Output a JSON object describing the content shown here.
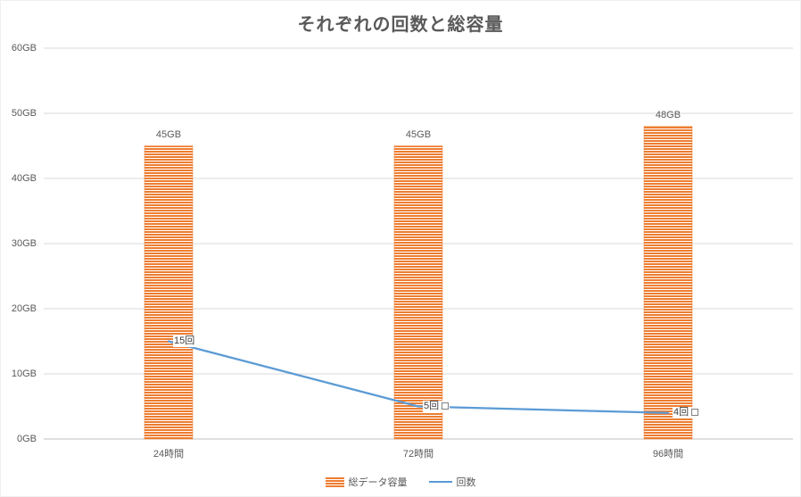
{
  "chart_data": {
    "type": "combo",
    "title": "それぞれの回数と総容量",
    "categories": [
      "24時間",
      "72時間",
      "96時間"
    ],
    "series": [
      {
        "name": "総データ容量",
        "chart_type": "bar",
        "values": [
          45,
          45,
          48
        ],
        "data_labels": [
          "45GB",
          "45GB",
          "48GB"
        ],
        "color": "#ED7D31",
        "pattern": "horizontal-stripes"
      },
      {
        "name": "回数",
        "chart_type": "line",
        "values": [
          15,
          5,
          4
        ],
        "data_labels": [
          "15回",
          "5回",
          "4回"
        ],
        "label_boxes": [
          false,
          true,
          true
        ],
        "color": "#5B9BD5"
      }
    ],
    "y_axis": {
      "min": 0,
      "max": 60,
      "step": 10,
      "tick_labels": [
        "0GB",
        "10GB",
        "20GB",
        "30GB",
        "40GB",
        "50GB",
        "60GB"
      ]
    },
    "x_axis": {
      "tick_labels": [
        "24時間",
        "72時間",
        "96時間"
      ]
    },
    "grid": true,
    "legend_position": "bottom"
  },
  "legend": {
    "items": [
      {
        "label": "総データ容量"
      },
      {
        "label": "回数"
      }
    ]
  },
  "colors": {
    "background": "#FFFFFF",
    "title_text": "#595959",
    "axis_text": "#595959",
    "gridline": "#D9D9D9",
    "axis_line": "#BFBFBF",
    "bar": "#ED7D31",
    "bar_stripe_gap": "#FFFFFF",
    "line": "#5B9BD5",
    "data_label_text": "#404040",
    "label_box_border": "#7F7F7F"
  }
}
